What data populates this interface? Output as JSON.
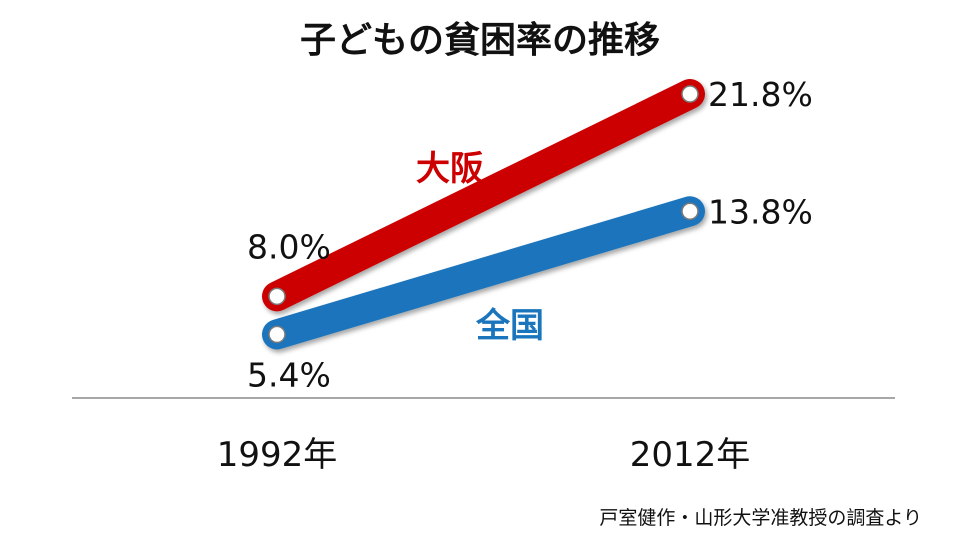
{
  "chart_data": {
    "type": "line",
    "title": "子どもの貧困率の推移",
    "categories": [
      "1992年",
      "2012年"
    ],
    "series": [
      {
        "name": "大阪",
        "color": "#cc0000",
        "values": [
          8.0,
          21.8
        ],
        "labels": [
          "8.0%",
          "21.8%"
        ]
      },
      {
        "name": "全国",
        "color": "#1a75bc",
        "values": [
          5.4,
          13.8
        ],
        "labels": [
          "5.4%",
          "13.8%"
        ]
      }
    ],
    "ylim": [
      0,
      25
    ],
    "grid": false,
    "legend": "inline",
    "source": "戸室健作・山形大学准教授の調査より"
  }
}
